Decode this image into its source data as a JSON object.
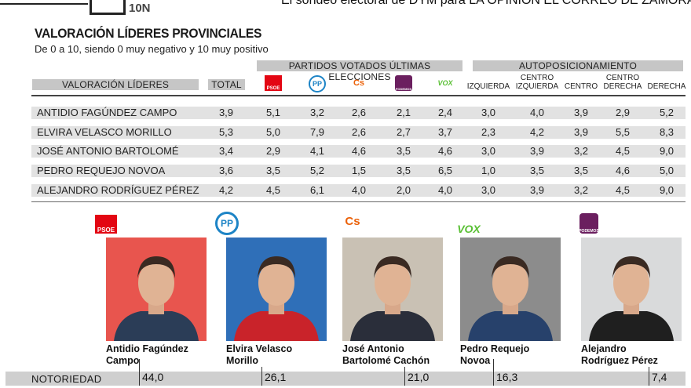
{
  "header": {
    "logo_text": "10N",
    "caption": "El sondeo electoral de DYM para LA OPINIÓN EL CORREO DE ZAMORA"
  },
  "title": "VALORACIÓN LÍDERES PROVINCIALES",
  "subtitle": "De 0 a 10, siendo 0 muy negativo y 10 muy positivo",
  "group_headers": {
    "partidos": "PARTIDOS VOTADOS ÚLTIMAS ELECCIONES",
    "auto": "AUTOPOSICIONAMIENTO"
  },
  "columns": {
    "leaders": "VALORACIÓN LÍDERES",
    "total": "TOTAL",
    "parties": [
      {
        "name": "PSOE",
        "icon": "psoe-logo",
        "color": "#e30613",
        "text": "PSOE"
      },
      {
        "name": "PP",
        "icon": "pp-logo",
        "color": "#1d84c6",
        "text": "PP"
      },
      {
        "name": "Cs",
        "icon": "cs-logo",
        "color": "#eb6109",
        "text": "Cs"
      },
      {
        "name": "Podemos",
        "icon": "podemos-logo",
        "color": "#6b1f5f",
        "text": "PODEMOS"
      },
      {
        "name": "VOX",
        "icon": "vox-logo",
        "color": "#5ac035",
        "text": "VOX"
      }
    ],
    "auto": [
      {
        "l1": "",
        "l2": "IZQUIERDA"
      },
      {
        "l1": "CENTRO",
        "l2": "IZQUIERDA"
      },
      {
        "l1": "",
        "l2": "CENTRO"
      },
      {
        "l1": "CENTRO",
        "l2": "DERECHA"
      },
      {
        "l1": "",
        "l2": "DERECHA"
      }
    ]
  },
  "rows": [
    {
      "name": "ANTIDIO FAGÚNDEZ CAMPO",
      "values": [
        "3,9",
        "5,1",
        "3,2",
        "2,6",
        "2,1",
        "2,4",
        "3,0",
        "4,0",
        "3,9",
        "2,9",
        "5,2"
      ]
    },
    {
      "name": "ELVIRA VELASCO MORILLO",
      "values": [
        "5,3",
        "5,0",
        "7,9",
        "2,6",
        "2,7",
        "3,7",
        "2,3",
        "4,2",
        "3,9",
        "5,5",
        "8,3"
      ]
    },
    {
      "name": "JOSÉ ANTONIO BARTOLOMÉ",
      "values": [
        "3,4",
        "2,9",
        "4,1",
        "4,6",
        "3,5",
        "4,6",
        "3,0",
        "3,9",
        "3,2",
        "4,5",
        "9,0"
      ]
    },
    {
      "name": "PEDRO REQUEJO NOVOA",
      "values": [
        "3,6",
        "3,5",
        "5,2",
        "1,5",
        "3,5",
        "6,5",
        "1,0",
        "3,5",
        "3,5",
        "4,6",
        "5,0"
      ]
    },
    {
      "name": "ALEJANDRO RODRÍGUEZ PÉREZ",
      "values": [
        "4,2",
        "4,5",
        "6,1",
        "4,0",
        "2,0",
        "4,0",
        "3,0",
        "3,9",
        "3,2",
        "4,5",
        "9,0"
      ]
    }
  ],
  "candidates": [
    {
      "line1": "Antidio Fagúndez",
      "line2": "Campo",
      "party": "PSOE",
      "bg": "#e8554e",
      "shirt": "#2b3d57"
    },
    {
      "line1": "Elvira Velasco",
      "line2": "Morillo",
      "party": "PP",
      "bg": "#2f6fb8",
      "shirt": "#c9232a"
    },
    {
      "line1": "José Antonio",
      "line2": "Bartolomé Cachón",
      "party": "Cs",
      "bg": "#c9c1b4",
      "shirt": "#2a2e3a"
    },
    {
      "line1": "Pedro Requejo",
      "line2": "Novoa",
      "party": "VOX",
      "bg": "#8c8c8c",
      "shirt": "#27416b"
    },
    {
      "line1": "Alejandro",
      "line2": "Rodríguez Pérez",
      "party": "PODEMOS",
      "bg": "#d9dadb",
      "shirt": "#1f1f1f"
    }
  ],
  "notoriedad": {
    "label": "NOTORIEDAD",
    "values": [
      "44,0",
      "26,1",
      "21,0",
      "16,3",
      "7,4"
    ]
  }
}
